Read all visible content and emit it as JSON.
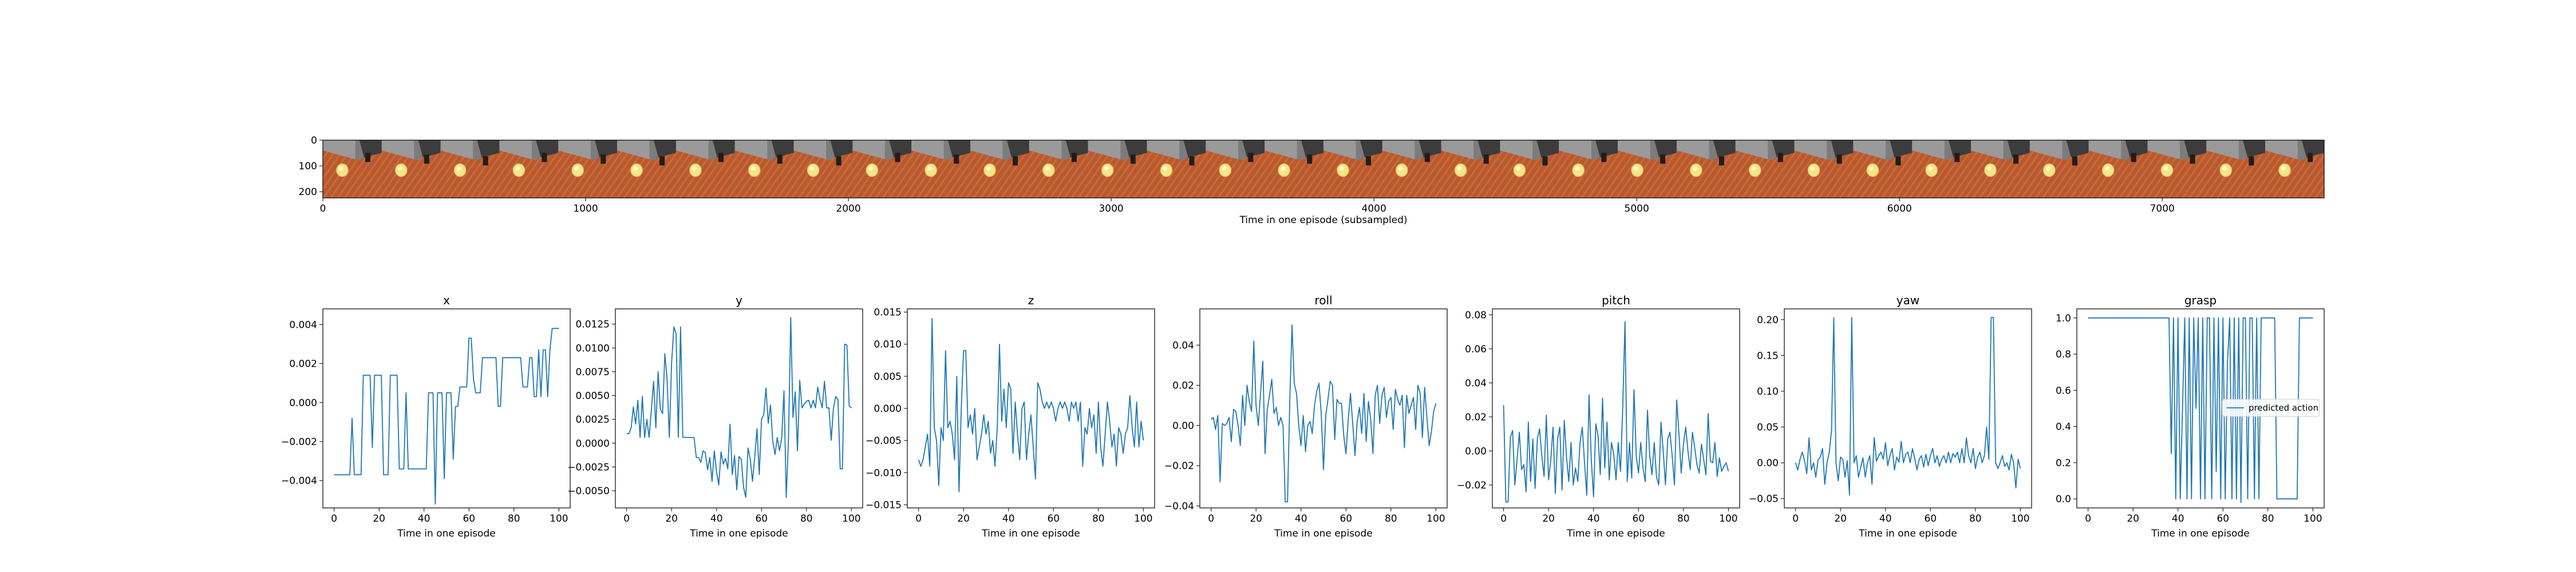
{
  "figure": {
    "strip": {
      "xlabel": "Time in one episode (subsampled)",
      "xticks": [
        0,
        1000,
        2000,
        3000,
        4000,
        5000,
        6000,
        7000
      ],
      "yticks": [
        0,
        100,
        200
      ],
      "xlim": [
        0,
        7616
      ],
      "ylim": [
        0,
        224
      ],
      "frame_count": 34
    },
    "legend_label": "predicted action"
  },
  "chart_data": [
    {
      "type": "line",
      "title": "x",
      "xlabel": "Time in one episode",
      "xlim": [
        -5,
        105
      ],
      "ylim": [
        -0.0054,
        0.0048
      ],
      "xticks": [
        0,
        20,
        40,
        60,
        80,
        100
      ],
      "yticks": [
        -0.004,
        -0.002,
        0.0,
        0.002,
        0.004
      ],
      "yticklabels": [
        "−0.004",
        "−0.002",
        "0.000",
        "0.002",
        "0.004"
      ],
      "series": [
        {
          "values": [
            -0.0037,
            -0.0037,
            -0.0037,
            -0.0037,
            -0.0037,
            -0.0037,
            -0.0037,
            -0.0037,
            -0.0008,
            -0.0037,
            -0.0037,
            -0.0037,
            -0.0037,
            0.0014,
            0.0014,
            0.0014,
            0.0014,
            -0.0023,
            0.0014,
            0.0014,
            0.0014,
            0.0014,
            -0.0037,
            -0.0037,
            -0.0037,
            0.0014,
            0.0014,
            0.0014,
            0.0014,
            -0.0034,
            -0.0034,
            -0.0034,
            0.0005,
            -0.0034,
            -0.0034,
            -0.0034,
            -0.0034,
            -0.0034,
            -0.0034,
            -0.0034,
            -0.0034,
            -0.0034,
            0.0005,
            0.0005,
            0.0005,
            -0.0052,
            0.0005,
            0.0005,
            0.0005,
            -0.0039,
            0.0005,
            0.0005,
            0.0005,
            -0.0029,
            -0.0002,
            -0.0002,
            0.0008,
            0.0008,
            0.0008,
            0.0008,
            0.0033,
            0.0033,
            0.0012,
            0.0005,
            0.0005,
            0.0005,
            0.0023,
            0.0023,
            0.0023,
            0.0023,
            0.0023,
            0.0023,
            0.0023,
            -0.0002,
            -0.0002,
            0.0023,
            0.0023,
            0.0023,
            0.0023,
            0.0023,
            0.0023,
            0.0023,
            0.0023,
            0.0023,
            0.0008,
            0.0008,
            0.0008,
            0.0023,
            0.0023,
            0.0003,
            0.0003,
            0.0027,
            0.0003,
            0.0027,
            0.0027,
            0.0003,
            0.0027,
            0.0038,
            0.0038,
            0.0038,
            0.0038
          ]
        }
      ]
    },
    {
      "type": "line",
      "title": "y",
      "xlabel": "Time in one episode",
      "xlim": [
        -5,
        105
      ],
      "ylim": [
        -0.0068,
        0.0141
      ],
      "xticks": [
        0,
        20,
        40,
        60,
        80,
        100
      ],
      "yticks": [
        -0.005,
        -0.0025,
        0.0,
        0.0025,
        0.005,
        0.0075,
        0.01,
        0.0125
      ],
      "yticklabels": [
        "−0.0050",
        "−0.0025",
        "0.0000",
        "0.0025",
        "0.0050",
        "0.0075",
        "0.0100",
        "0.0125"
      ],
      "series": [
        {
          "values": [
            0.001,
            0.001,
            0.0016,
            0.0038,
            0.002,
            0.0045,
            0.0006,
            0.0049,
            0.0006,
            0.0025,
            0.0006,
            0.0035,
            0.0065,
            0.0016,
            0.0075,
            0.0036,
            0.0031,
            0.0094,
            0.0067,
            0.0006,
            0.0084,
            0.0122,
            0.0115,
            0.0006,
            0.0122,
            0.0006,
            0.0006,
            0.0006,
            0.0006,
            0.0006,
            0.0006,
            -0.0015,
            -0.0015,
            -0.002,
            -0.0008,
            -0.001,
            -0.0028,
            -0.0015,
            -0.004,
            -0.0008,
            -0.003,
            -0.0044,
            -0.0009,
            -0.0022,
            -0.0016,
            -0.0027,
            0.002,
            -0.0033,
            -0.0013,
            -0.0049,
            -0.0014,
            -0.0017,
            -0.0046,
            -0.0057,
            -0.0005,
            -0.0017,
            -0.004,
            -0.0014,
            0.0015,
            -0.0033,
            0.0025,
            0.003,
            0.0058,
            0.0021,
            0.004,
            0.0002,
            -0.0012,
            0.0006,
            -0.0008,
            0.0006,
            0.0055,
            -0.0057,
            0.0004,
            0.0132,
            0.0027,
            0.0054,
            -0.0008,
            0.0066,
            0.0037,
            0.0041,
            0.0044,
            0.0045,
            0.0037,
            0.0045,
            0.0037,
            0.0059,
            0.0046,
            0.0037,
            0.0065,
            0.0037,
            0.0037,
            0.0003,
            0.0037,
            0.0049,
            0.0046,
            -0.0027,
            -0.0027,
            0.0104,
            0.0103,
            0.0039,
            0.0037
          ]
        }
      ]
    },
    {
      "type": "line",
      "title": "z",
      "xlabel": "Time in one episode",
      "xlim": [
        -5,
        105
      ],
      "ylim": [
        -0.0155,
        0.0155
      ],
      "xticks": [
        0,
        20,
        40,
        60,
        80,
        100
      ],
      "yticks": [
        -0.015,
        -0.01,
        -0.005,
        0.0,
        0.005,
        0.01,
        0.015
      ],
      "yticklabels": [
        "−0.015",
        "−0.010",
        "−0.005",
        "0.000",
        "0.005",
        "0.010",
        "0.015"
      ],
      "series": [
        {
          "values": [
            -0.008,
            -0.009,
            -0.008,
            -0.006,
            -0.004,
            -0.009,
            0.014,
            -0.003,
            -0.005,
            -0.012,
            -0.003,
            -0.005,
            0.009,
            -0.003,
            -0.002,
            -0.004,
            -0.008,
            0.005,
            -0.013,
            0.0,
            0.009,
            0.009,
            -0.003,
            -0.001,
            -0.004,
            0.0,
            -0.008,
            -0.006,
            -0.004,
            -0.001,
            -0.004,
            -0.002,
            -0.007,
            -0.005,
            -0.009,
            -0.003,
            0.01,
            -0.002,
            0.003,
            -0.003,
            0.004,
            0.003,
            -0.007,
            0.001,
            -0.004,
            -0.008,
            0.0,
            0.001,
            -0.008,
            -0.004,
            -0.001,
            -0.006,
            -0.011,
            0.004,
            0.003,
            0.001,
            0.0,
            0.001,
            0.0,
            0.001,
            0.0,
            -0.002,
            0.0,
            0.001,
            0.0,
            0.001,
            0.0,
            -0.002,
            0.001,
            0.0,
            0.001,
            -0.002,
            0.001,
            -0.009,
            -0.003,
            -0.004,
            0.0,
            -0.003,
            -0.001,
            -0.007,
            0.001,
            -0.006,
            -0.009,
            -0.004,
            0.001,
            -0.002,
            -0.006,
            -0.004,
            -0.009,
            -0.003,
            -0.004,
            -0.007,
            -0.004,
            -0.003,
            0.002,
            -0.003,
            -0.006,
            0.001,
            -0.006,
            -0.002,
            -0.005
          ]
        }
      ]
    },
    {
      "type": "line",
      "title": "roll",
      "xlabel": "Time in one episode",
      "xlim": [
        -5,
        105
      ],
      "ylim": [
        -0.041,
        0.058
      ],
      "xticks": [
        0,
        20,
        40,
        60,
        80,
        100
      ],
      "yticks": [
        -0.04,
        -0.02,
        0.0,
        0.02,
        0.04
      ],
      "yticklabels": [
        "−0.04",
        "−0.02",
        "0.00",
        "0.02",
        "0.04"
      ],
      "series": [
        {
          "values": [
            0.003,
            0.004,
            -0.002,
            0.005,
            -0.028,
            0.001,
            0.0,
            0.001,
            0.004,
            -0.008,
            0.008,
            0.007,
            0.0,
            -0.01,
            0.015,
            0.0,
            0.02,
            0.012,
            0.007,
            0.042,
            0.01,
            0.0,
            0.016,
            0.032,
            -0.014,
            0.008,
            0.015,
            0.023,
            0.006,
            0.009,
            0.0,
            0.004,
            0.0,
            -0.038,
            -0.038,
            0.012,
            0.05,
            0.021,
            0.016,
            0.0,
            -0.01,
            0.005,
            -0.013,
            0.0,
            0.002,
            -0.004,
            0.01,
            0.017,
            0.021,
            0.006,
            -0.022,
            0.005,
            0.013,
            0.022,
            0.02,
            -0.007,
            0.013,
            0.011,
            0.011,
            -0.005,
            -0.014,
            0.003,
            0.016,
            0.001,
            -0.015,
            0.002,
            0.009,
            -0.004,
            0.016,
            -0.008,
            0.012,
            0.003,
            -0.014,
            0.015,
            0.02,
            0.001,
            0.015,
            0.019,
            0.004,
            0.012,
            0.014,
            -0.002,
            0.018,
            0.013,
            0.01,
            0.015,
            -0.011,
            0.015,
            0.006,
            0.01,
            0.014,
            -0.002,
            0.02,
            0.016,
            -0.006,
            0.019,
            0.004,
            -0.01,
            -0.003,
            0.007,
            0.011
          ]
        }
      ]
    },
    {
      "type": "line",
      "title": "pitch",
      "xlabel": "Time in one episode",
      "xlim": [
        -5,
        105
      ],
      "ylim": [
        -0.0335,
        0.0835
      ],
      "xticks": [
        0,
        20,
        40,
        60,
        80,
        100
      ],
      "yticks": [
        -0.02,
        0.0,
        0.02,
        0.04,
        0.06,
        0.08
      ],
      "yticklabels": [
        "−0.02",
        "0.00",
        "0.02",
        "0.04",
        "0.06",
        "0.08"
      ],
      "series": [
        {
          "values": [
            0.027,
            -0.03,
            -0.03,
            0.008,
            0.012,
            -0.02,
            -0.005,
            0.011,
            -0.011,
            -0.008,
            -0.024,
            0.017,
            -0.018,
            0.007,
            -0.022,
            0.007,
            0.013,
            -0.003,
            -0.015,
            0.021,
            -0.017,
            -0.005,
            0.014,
            -0.025,
            0.007,
            0.014,
            -0.023,
            0.018,
            -0.004,
            -0.018,
            0.005,
            -0.02,
            -0.01,
            -0.018,
            0.005,
            0.014,
            -0.007,
            -0.026,
            0.033,
            -0.005,
            -0.027,
            0.016,
            0.009,
            -0.014,
            0.031,
            -0.01,
            0.017,
            -0.017,
            0.005,
            -0.002,
            -0.017,
            0.005,
            -0.012,
            0.026,
            0.076,
            -0.018,
            0.005,
            -0.016,
            0.036,
            -0.003,
            -0.013,
            0.005,
            -0.01,
            -0.018,
            0.024,
            -0.003,
            -0.014,
            0.005,
            -0.015,
            -0.02,
            0.017,
            0.0,
            -0.02,
            0.007,
            0.011,
            -0.003,
            -0.02,
            0.03,
            0.01,
            -0.013,
            0.004,
            0.014,
            0.0,
            -0.011,
            0.011,
            0.002,
            -0.008,
            -0.013,
            0.004,
            -0.005,
            -0.014,
            0.022,
            -0.006,
            -0.007,
            0.005,
            -0.015,
            -0.004,
            -0.012,
            -0.009,
            -0.007,
            -0.012
          ]
        }
      ]
    },
    {
      "type": "line",
      "title": "yaw",
      "xlabel": "Time in one episode",
      "xlim": [
        -5,
        105
      ],
      "ylim": [
        -0.063,
        0.215
      ],
      "xticks": [
        0,
        20,
        40,
        60,
        80,
        100
      ],
      "yticks": [
        -0.05,
        0.0,
        0.05,
        0.1,
        0.15,
        0.2
      ],
      "yticklabels": [
        "−0.05",
        "0.00",
        "0.05",
        "0.10",
        "0.15",
        "0.20"
      ],
      "series": [
        {
          "values": [
            0.0,
            -0.01,
            0.005,
            0.015,
            0.003,
            -0.015,
            0.035,
            -0.01,
            0.0,
            -0.02,
            0.004,
            0.008,
            0.02,
            -0.03,
            0.0,
            0.015,
            0.045,
            0.203,
            0.0,
            -0.025,
            0.008,
            0.005,
            -0.02,
            0.003,
            -0.045,
            0.203,
            0.0,
            0.01,
            -0.02,
            -0.006,
            0.007,
            -0.02,
            0.0,
            0.01,
            -0.03,
            0.035,
            0.002,
            0.01,
            0.015,
            0.005,
            0.028,
            -0.004,
            0.01,
            0.02,
            -0.01,
            0.008,
            0.001,
            0.03,
            0.0,
            0.012,
            0.015,
            0.0,
            0.02,
            0.006,
            -0.01,
            0.005,
            0.01,
            -0.006,
            0.012,
            -0.004,
            0.01,
            0.02,
            0.0,
            0.01,
            -0.005,
            0.005,
            0.01,
            0.0,
            0.015,
            0.0,
            0.013,
            0.008,
            0.015,
            0.0,
            0.02,
            0.0,
            0.035,
            0.01,
            0.0,
            0.02,
            -0.008,
            0.008,
            0.015,
            0.0,
            0.01,
            0.05,
            0.005,
            0.203,
            0.203,
            0.0,
            -0.008,
            0.0,
            0.01,
            -0.005,
            0.0,
            -0.01,
            0.012,
            0.0,
            -0.035,
            0.005,
            -0.008
          ]
        }
      ]
    },
    {
      "type": "line",
      "title": "grasp",
      "xlabel": "Time in one episode",
      "xlim": [
        -5,
        105
      ],
      "ylim": [
        -0.05,
        1.05
      ],
      "xticks": [
        0,
        20,
        40,
        60,
        80,
        100
      ],
      "yticks": [
        0.0,
        0.2,
        0.4,
        0.6,
        0.8,
        1.0
      ],
      "yticklabels": [
        "0.0",
        "0.2",
        "0.4",
        "0.6",
        "0.8",
        "1.0"
      ],
      "series": [
        {
          "name": "predicted action",
          "values": [
            1,
            1,
            1,
            1,
            1,
            1,
            1,
            1,
            1,
            1,
            1,
            1,
            1,
            1,
            1,
            1,
            1,
            1,
            1,
            1,
            1,
            1,
            1,
            1,
            1,
            1,
            1,
            1,
            1,
            1,
            1,
            1,
            1,
            1,
            1,
            1,
            1,
            0.25,
            1,
            0,
            1,
            0,
            0.5,
            1,
            0,
            1,
            0,
            1,
            0.5,
            1,
            0,
            1,
            0,
            1,
            1,
            0,
            1,
            0.15,
            1,
            0,
            1,
            0,
            0.75,
            1,
            0,
            1,
            0,
            1,
            -0.02,
            1,
            1,
            0,
            1,
            1,
            0,
            1,
            0,
            1,
            1,
            1,
            1,
            1,
            1,
            1,
            0,
            0,
            0,
            0,
            0,
            0,
            0,
            0,
            0,
            0,
            1,
            1,
            1,
            1,
            1,
            1,
            1
          ]
        }
      ]
    }
  ]
}
